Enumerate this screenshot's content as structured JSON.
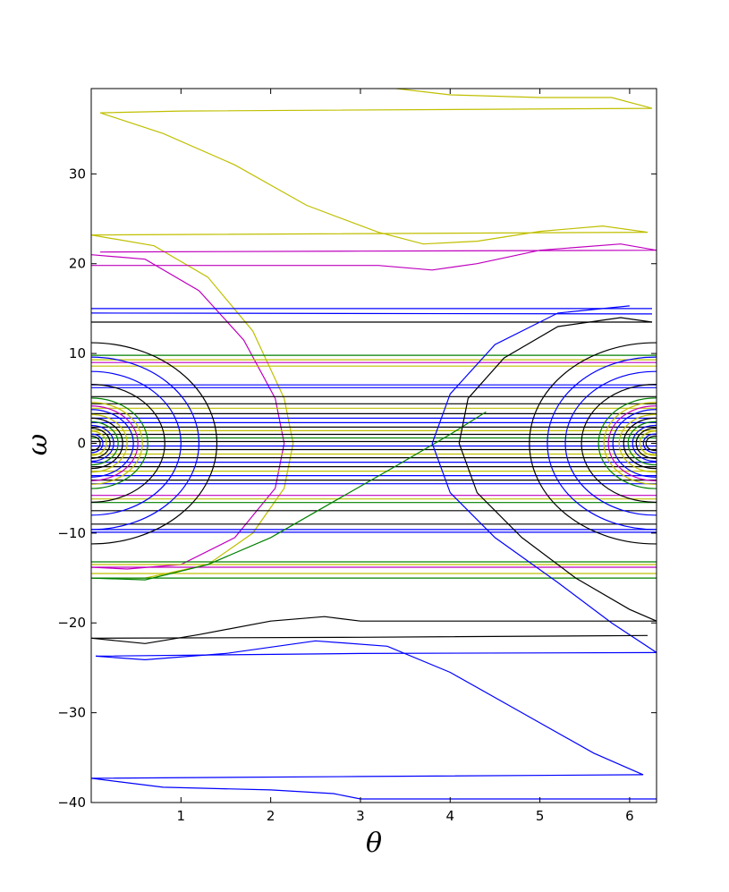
{
  "chart_data": {
    "type": "line",
    "title": "",
    "xlabel": "θ",
    "ylabel": "ω",
    "xlim": [
      0.0,
      6.3
    ],
    "ylim": [
      -40,
      39.5
    ],
    "xticks": [
      1,
      2,
      3,
      4,
      5,
      6
    ],
    "yticks": [
      -40,
      -30,
      -20,
      -10,
      0,
      10,
      20,
      30
    ],
    "xtick_labels": [
      "1",
      "2",
      "3",
      "4",
      "5",
      "6"
    ],
    "ytick_labels": [
      "−40",
      "−30",
      "−20",
      "−10",
      "0",
      "10",
      "20",
      "30"
    ],
    "grid": false,
    "legend": "none",
    "colors": {
      "blue": "#0000ff",
      "green": "#008000",
      "magenta": "#bf00bf",
      "yellow": "#bfbf00",
      "black": "#000000"
    },
    "rings": [
      {
        "color": "#000000",
        "radius": 0.1
      },
      {
        "color": "#0000ff",
        "radius": 0.13
      },
      {
        "color": "#bfbf00",
        "radius": 0.17
      },
      {
        "color": "#000000",
        "radius": 0.21
      },
      {
        "color": "#0000ff",
        "radius": 0.25
      },
      {
        "color": "#008000",
        "radius": 0.3
      },
      {
        "color": "#000000",
        "radius": 0.35
      },
      {
        "color": "#bfbf00",
        "radius": 0.4
      },
      {
        "color": "#0000ff",
        "radius": 0.47
      },
      {
        "color": "#bf00bf",
        "radius": 0.52
      },
      {
        "color": "#bfbf00",
        "radius": 0.57
      },
      {
        "color": "#008000",
        "radius": 0.63
      },
      {
        "color": "#000000",
        "radius": 0.82
      },
      {
        "color": "#0000ff",
        "radius": 1.0
      },
      {
        "color": "#0000ff",
        "radius": 1.2
      },
      {
        "color": "#000000",
        "radius": 1.4
      }
    ],
    "series": [
      {
        "color": "#bfbf00",
        "points": [
          [
            3.4,
            39.5
          ],
          [
            4.0,
            38.8
          ],
          [
            5.0,
            38.5
          ],
          [
            5.8,
            38.5
          ],
          [
            6.25,
            37.3
          ],
          [
            1.0,
            37.0
          ],
          [
            0.1,
            36.8
          ],
          [
            0.8,
            34.5
          ],
          [
            1.6,
            31.0
          ],
          [
            2.4,
            26.5
          ],
          [
            3.2,
            23.5
          ],
          [
            3.7,
            22.2
          ],
          [
            4.3,
            22.5
          ],
          [
            5.0,
            23.6
          ],
          [
            5.7,
            24.2
          ],
          [
            6.2,
            23.5
          ],
          [
            0.0,
            23.2
          ]
        ]
      },
      {
        "color": "#bfbf00",
        "points": [
          [
            0.0,
            23.2
          ],
          [
            0.7,
            22.0
          ],
          [
            1.3,
            18.5
          ],
          [
            1.8,
            12.5
          ],
          [
            2.15,
            5.0
          ],
          [
            2.25,
            0.0
          ],
          [
            2.15,
            -5.0
          ],
          [
            1.8,
            -10.0
          ],
          [
            1.3,
            -13.5
          ],
          [
            0.6,
            -15.0
          ],
          [
            0.0,
            -15.0
          ]
        ]
      },
      {
        "color": "#bf00bf",
        "points": [
          [
            0.1,
            21.3
          ],
          [
            3.0,
            21.4
          ],
          [
            6.3,
            21.5
          ],
          [
            5.9,
            22.2
          ],
          [
            5.0,
            21.5
          ],
          [
            4.3,
            20.0
          ],
          [
            3.8,
            19.3
          ],
          [
            3.2,
            19.8
          ],
          [
            0.0,
            19.8
          ]
        ]
      },
      {
        "color": "#bf00bf",
        "points": [
          [
            0.0,
            21.0
          ],
          [
            0.6,
            20.5
          ],
          [
            1.2,
            17.0
          ],
          [
            1.7,
            11.5
          ],
          [
            2.05,
            5.0
          ],
          [
            2.15,
            0.0
          ],
          [
            2.05,
            -5.0
          ],
          [
            1.6,
            -10.5
          ],
          [
            1.0,
            -13.5
          ],
          [
            0.4,
            -14.0
          ],
          [
            0.0,
            -13.8
          ]
        ]
      },
      {
        "color": "#0000ff",
        "points": [
          [
            0.0,
            15.0
          ],
          [
            6.25,
            15.0
          ]
        ]
      },
      {
        "color": "#0000ff",
        "points": [
          [
            0.0,
            14.5
          ],
          [
            6.25,
            14.4
          ]
        ]
      },
      {
        "color": "#000000",
        "points": [
          [
            0.0,
            13.5
          ],
          [
            6.25,
            13.5
          ]
        ]
      },
      {
        "color": "#008000",
        "points": [
          [
            0.0,
            9.8
          ],
          [
            6.3,
            9.8
          ]
        ]
      },
      {
        "color": "#bfbf00",
        "points": [
          [
            0.0,
            9.3
          ],
          [
            6.3,
            9.3
          ]
        ]
      },
      {
        "color": "#bf00bf",
        "points": [
          [
            0.0,
            9.0
          ],
          [
            6.3,
            9.0
          ]
        ]
      },
      {
        "color": "#bfbf00",
        "points": [
          [
            0.0,
            8.6
          ],
          [
            6.3,
            8.6
          ]
        ]
      },
      {
        "color": "#0000ff",
        "points": [
          [
            0.0,
            6.5
          ],
          [
            6.3,
            6.5
          ]
        ]
      },
      {
        "color": "#0000ff",
        "points": [
          [
            0.0,
            6.2
          ],
          [
            6.3,
            6.2
          ]
        ]
      },
      {
        "color": "#000000",
        "points": [
          [
            0.0,
            5.2
          ],
          [
            6.3,
            5.2
          ]
        ]
      },
      {
        "color": "#000000",
        "points": [
          [
            0.0,
            4.4
          ],
          [
            6.3,
            4.4
          ]
        ]
      },
      {
        "color": "#bfbf00",
        "points": [
          [
            0.0,
            3.9
          ],
          [
            6.3,
            3.9
          ]
        ]
      },
      {
        "color": "#000000",
        "points": [
          [
            0.0,
            3.3
          ],
          [
            6.3,
            3.3
          ]
        ]
      },
      {
        "color": "#0000ff",
        "points": [
          [
            0.0,
            2.8
          ],
          [
            6.3,
            2.8
          ]
        ]
      },
      {
        "color": "#0000ff",
        "points": [
          [
            0.0,
            2.3
          ],
          [
            6.3,
            2.3
          ]
        ]
      },
      {
        "color": "#000000",
        "points": [
          [
            0.0,
            1.8
          ],
          [
            6.3,
            1.8
          ]
        ]
      },
      {
        "color": "#bfbf00",
        "points": [
          [
            0.0,
            1.4
          ],
          [
            6.3,
            1.4
          ]
        ]
      },
      {
        "color": "#000000",
        "points": [
          [
            0.0,
            1.0
          ],
          [
            6.3,
            1.0
          ]
        ]
      },
      {
        "color": "#008000",
        "points": [
          [
            0.0,
            0.6
          ],
          [
            6.3,
            0.6
          ]
        ]
      },
      {
        "color": "#000000",
        "points": [
          [
            0.0,
            0.2
          ],
          [
            6.3,
            0.2
          ]
        ]
      },
      {
        "color": "#0000ff",
        "points": [
          [
            0.0,
            -0.3
          ],
          [
            6.3,
            -0.3
          ]
        ]
      },
      {
        "color": "#000000",
        "points": [
          [
            0.0,
            -0.7
          ],
          [
            6.3,
            -0.7
          ]
        ]
      },
      {
        "color": "#bfbf00",
        "points": [
          [
            0.0,
            -1.2
          ],
          [
            6.3,
            -1.2
          ]
        ]
      },
      {
        "color": "#000000",
        "points": [
          [
            0.0,
            -1.6
          ],
          [
            6.3,
            -1.6
          ]
        ]
      },
      {
        "color": "#0000ff",
        "points": [
          [
            0.0,
            -2.1
          ],
          [
            6.3,
            -2.1
          ]
        ]
      },
      {
        "color": "#000000",
        "points": [
          [
            0.0,
            -2.6
          ],
          [
            6.3,
            -2.6
          ]
        ]
      },
      {
        "color": "#bfbf00",
        "points": [
          [
            0.0,
            -3.1
          ],
          [
            6.3,
            -3.1
          ]
        ]
      },
      {
        "color": "#0000ff",
        "points": [
          [
            0.0,
            -3.6
          ],
          [
            6.3,
            -3.6
          ]
        ]
      },
      {
        "color": "#000000",
        "points": [
          [
            0.0,
            -4.1
          ],
          [
            6.3,
            -4.1
          ]
        ]
      },
      {
        "color": "#0000ff",
        "points": [
          [
            0.0,
            -4.5
          ],
          [
            6.3,
            -4.5
          ]
        ]
      },
      {
        "color": "#bf00bf",
        "points": [
          [
            0.0,
            -5.8
          ],
          [
            6.3,
            -5.8
          ]
        ]
      },
      {
        "color": "#bfbf00",
        "points": [
          [
            0.0,
            -6.2
          ],
          [
            6.3,
            -6.2
          ]
        ]
      },
      {
        "color": "#008000",
        "points": [
          [
            0.0,
            -6.6
          ],
          [
            6.3,
            -6.6
          ]
        ]
      },
      {
        "color": "#000000",
        "points": [
          [
            0.0,
            -7.5
          ],
          [
            6.3,
            -7.5
          ]
        ]
      },
      {
        "color": "#000000",
        "points": [
          [
            0.0,
            -9.0
          ],
          [
            6.3,
            -9.0
          ]
        ]
      },
      {
        "color": "#0000ff",
        "points": [
          [
            0.0,
            -9.6
          ],
          [
            6.3,
            -9.6
          ]
        ]
      },
      {
        "color": "#0000ff",
        "points": [
          [
            0.0,
            -9.9
          ],
          [
            6.3,
            -9.9
          ]
        ]
      },
      {
        "color": "#008000",
        "points": [
          [
            0.0,
            -13.2
          ],
          [
            6.3,
            -13.2
          ]
        ]
      },
      {
        "color": "#bfbf00",
        "points": [
          [
            0.0,
            -13.5
          ],
          [
            6.3,
            -13.5
          ]
        ]
      },
      {
        "color": "#bf00bf",
        "points": [
          [
            0.0,
            -13.8
          ],
          [
            6.3,
            -13.8
          ]
        ]
      },
      {
        "color": "#bfbf00",
        "points": [
          [
            0.0,
            -14.5
          ],
          [
            6.3,
            -14.5
          ]
        ]
      },
      {
        "color": "#008000",
        "points": [
          [
            0.0,
            -15.0
          ],
          [
            6.3,
            -15.0
          ]
        ]
      },
      {
        "color": "#008000",
        "points": [
          [
            0.0,
            -15.0
          ],
          [
            0.6,
            -15.2
          ],
          [
            1.3,
            -13.5
          ],
          [
            2.0,
            -10.5
          ],
          [
            2.7,
            -6.5
          ],
          [
            3.4,
            -2.5
          ],
          [
            4.0,
            1.0
          ],
          [
            4.4,
            3.5
          ]
        ]
      },
      {
        "color": "#0000ff",
        "points": [
          [
            6.0,
            15.3
          ],
          [
            5.2,
            14.5
          ],
          [
            4.5,
            11.0
          ],
          [
            4.0,
            5.5
          ],
          [
            3.8,
            0.0
          ],
          [
            4.0,
            -5.5
          ],
          [
            4.5,
            -10.5
          ],
          [
            5.2,
            -15.5
          ],
          [
            5.8,
            -20.0
          ],
          [
            6.3,
            -23.3
          ]
        ]
      },
      {
        "color": "#000000",
        "points": [
          [
            6.25,
            13.5
          ],
          [
            5.9,
            14.0
          ],
          [
            5.2,
            13.0
          ],
          [
            4.6,
            9.5
          ],
          [
            4.2,
            5.0
          ],
          [
            4.1,
            0.0
          ],
          [
            4.3,
            -5.5
          ],
          [
            4.8,
            -10.5
          ],
          [
            5.4,
            -15.0
          ],
          [
            6.0,
            -18.5
          ],
          [
            6.3,
            -19.8
          ]
        ]
      },
      {
        "color": "#000000",
        "points": [
          [
            6.3,
            -19.8
          ],
          [
            3.0,
            -19.8
          ],
          [
            2.6,
            -19.3
          ],
          [
            2.0,
            -19.8
          ],
          [
            1.2,
            -21.3
          ],
          [
            0.6,
            -22.3
          ],
          [
            0.0,
            -21.7
          ]
        ]
      },
      {
        "color": "#000000",
        "points": [
          [
            0.0,
            -21.7
          ],
          [
            3.0,
            -21.6
          ],
          [
            6.2,
            -21.4
          ]
        ]
      },
      {
        "color": "#0000ff",
        "points": [
          [
            6.3,
            -23.3
          ],
          [
            3.0,
            -23.4
          ],
          [
            0.05,
            -23.7
          ]
        ]
      },
      {
        "color": "#0000ff",
        "points": [
          [
            0.05,
            -23.7
          ],
          [
            0.6,
            -24.1
          ],
          [
            1.5,
            -23.4
          ],
          [
            2.5,
            -22.0
          ],
          [
            3.3,
            -22.6
          ],
          [
            4.0,
            -25.5
          ],
          [
            4.8,
            -30.0
          ],
          [
            5.6,
            -34.5
          ],
          [
            6.15,
            -36.9
          ],
          [
            3.0,
            -37.1
          ],
          [
            0.0,
            -37.3
          ],
          [
            0.8,
            -38.3
          ],
          [
            2.0,
            -38.6
          ],
          [
            2.7,
            -39.0
          ],
          [
            3.0,
            -39.6
          ],
          [
            6.3,
            -39.6
          ]
        ]
      }
    ]
  }
}
